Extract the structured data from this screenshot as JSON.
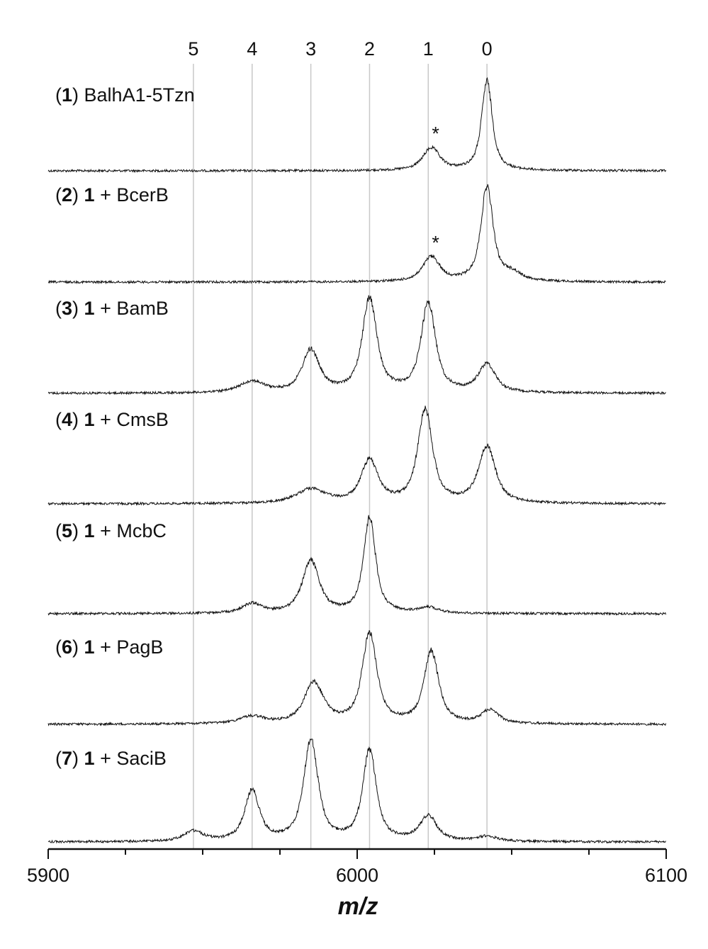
{
  "chart_data": {
    "type": "line",
    "xlabel": "m/z",
    "xlim": [
      5900,
      6100
    ],
    "x_ticks": [
      "5900",
      "6000",
      "6100"
    ],
    "x_tick_values": [
      5900,
      6000,
      6100
    ],
    "reference_lines": {
      "labels": [
        "5",
        "4",
        "3",
        "2",
        "1",
        "0"
      ],
      "x": [
        5947,
        5966,
        5985,
        6004,
        6023,
        6042
      ]
    },
    "peak_marker": "*",
    "series": [
      {
        "name": "BalhA1-5Tzn",
        "label_parts": [
          "(",
          "1",
          ") BalhA1-5Tzn"
        ],
        "peaks": [
          {
            "x": 6024,
            "height": 0.25,
            "width": 3.5,
            "marker": "*"
          },
          {
            "x": 6042,
            "height": 1.0,
            "width": 2.2
          }
        ]
      },
      {
        "name": "1 + BcerB",
        "label_parts": [
          "(",
          "2",
          ") ",
          "1",
          " + BcerB"
        ],
        "peaks": [
          {
            "x": 6024,
            "height": 0.26,
            "width": 3.5,
            "marker": "*"
          },
          {
            "x": 6042,
            "height": 1.0,
            "width": 2.5
          },
          {
            "x": 6050,
            "height": 0.08,
            "width": 4
          }
        ]
      },
      {
        "name": "1 + BamB",
        "label_parts": [
          "(",
          "3",
          ") ",
          "1",
          " + BamB"
        ],
        "peaks": [
          {
            "x": 5966,
            "height": 0.12,
            "width": 5
          },
          {
            "x": 5985,
            "height": 0.45,
            "width": 3.5
          },
          {
            "x": 6004,
            "height": 1.0,
            "width": 3
          },
          {
            "x": 6023,
            "height": 0.95,
            "width": 3
          },
          {
            "x": 6042,
            "height": 0.3,
            "width": 3.5
          }
        ]
      },
      {
        "name": "1 + CmsB",
        "label_parts": [
          "(",
          "4",
          ") ",
          "1",
          " + CmsB"
        ],
        "peaks": [
          {
            "x": 5985,
            "height": 0.15,
            "width": 6
          },
          {
            "x": 6004,
            "height": 0.45,
            "width": 3.5
          },
          {
            "x": 6022,
            "height": 1.0,
            "width": 3
          },
          {
            "x": 6042,
            "height": 0.6,
            "width": 3.5
          }
        ]
      },
      {
        "name": "1 + McbC",
        "label_parts": [
          "(",
          "5",
          ") ",
          "1",
          " + McbC"
        ],
        "peaks": [
          {
            "x": 5966,
            "height": 0.1,
            "width": 4
          },
          {
            "x": 5985,
            "height": 0.55,
            "width": 3.5
          },
          {
            "x": 6004,
            "height": 1.0,
            "width": 2.5
          },
          {
            "x": 6023,
            "height": 0.06,
            "width": 4
          }
        ]
      },
      {
        "name": "1 + PagB",
        "label_parts": [
          "(",
          "6",
          ") ",
          "1",
          " + PagB"
        ],
        "peaks": [
          {
            "x": 5966,
            "height": 0.08,
            "width": 5
          },
          {
            "x": 5986,
            "height": 0.45,
            "width": 4
          },
          {
            "x": 6004,
            "height": 1.0,
            "width": 3
          },
          {
            "x": 6024,
            "height": 0.8,
            "width": 3
          },
          {
            "x": 6043,
            "height": 0.15,
            "width": 3.5
          }
        ]
      },
      {
        "name": "1 + SaciB",
        "label_parts": [
          "(",
          "7",
          ") ",
          "1",
          " + SaciB"
        ],
        "peaks": [
          {
            "x": 5947,
            "height": 0.1,
            "width": 4
          },
          {
            "x": 5966,
            "height": 0.5,
            "width": 3
          },
          {
            "x": 5985,
            "height": 1.0,
            "width": 3
          },
          {
            "x": 6004,
            "height": 0.9,
            "width": 2.8
          },
          {
            "x": 6023,
            "height": 0.25,
            "width": 3.5
          },
          {
            "x": 6042,
            "height": 0.05,
            "width": 4
          }
        ]
      }
    ]
  }
}
